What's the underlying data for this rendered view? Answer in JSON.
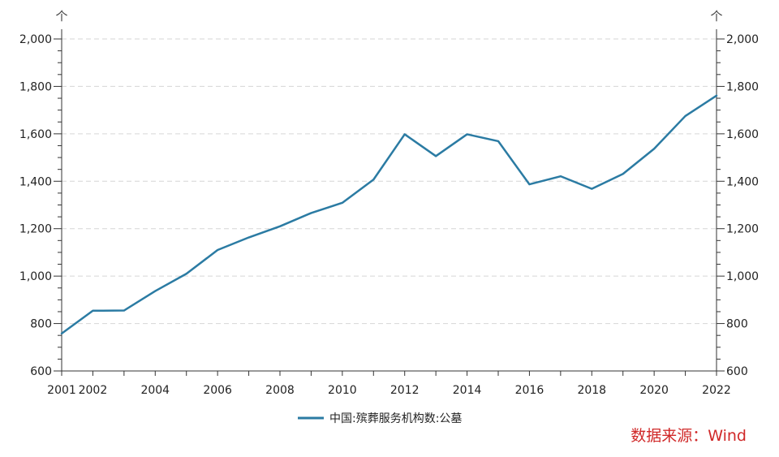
{
  "chart_data": {
    "type": "line",
    "x": [
      2001,
      2002,
      2003,
      2004,
      2005,
      2006,
      2007,
      2008,
      2009,
      2010,
      2011,
      2012,
      2013,
      2014,
      2015,
      2016,
      2017,
      2018,
      2019,
      2020,
      2021,
      2022
    ],
    "series": [
      {
        "name": "中国:殡葬服务机构数:公墓",
        "values": [
          758,
          854,
          855,
          937,
          1010,
          1110,
          1163,
          1210,
          1266,
          1309,
          1407,
          1598,
          1506,
          1598,
          1569,
          1387,
          1421,
          1368,
          1431,
          1537,
          1675,
          1761
        ],
        "color": "#2b7ba3"
      }
    ],
    "xlim": [
      2001,
      2022
    ],
    "ylim": [
      600,
      2000
    ],
    "x_tick_labels": [
      "2001",
      "2002",
      "2004",
      "2006",
      "2008",
      "2010",
      "2012",
      "2014",
      "2016",
      "2018",
      "2020",
      "2022"
    ],
    "y_tick_labels": [
      "600",
      "800",
      "1,000",
      "1,200",
      "1,400",
      "1,600",
      "1,800",
      "2,000"
    ],
    "y_unit_left": "个",
    "y_unit_right": "个",
    "grid": true,
    "legend_position": "bottom-center",
    "source": "数据来源：Wind",
    "source_color": "#d02828"
  }
}
